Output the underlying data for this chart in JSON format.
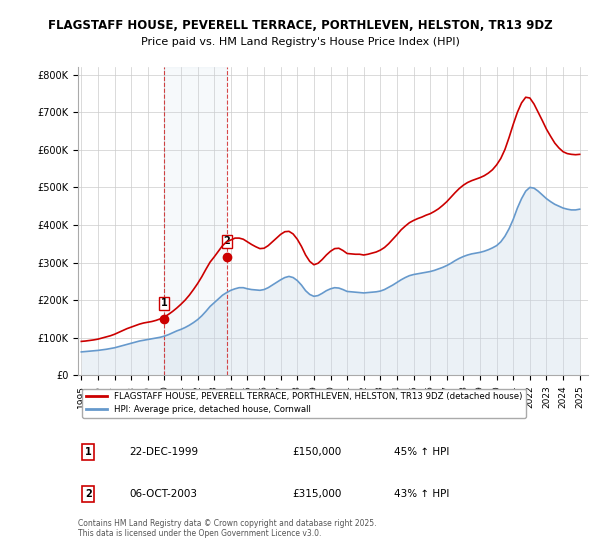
{
  "title_line1": "FLAGSTAFF HOUSE, PEVERELL TERRACE, PORTHLEVEN, HELSTON, TR13 9DZ",
  "title_line2": "Price paid vs. HM Land Registry's House Price Index (HPI)",
  "ylabel": "",
  "ylim": [
    0,
    820000
  ],
  "yticks": [
    0,
    100000,
    200000,
    300000,
    400000,
    500000,
    600000,
    700000,
    800000
  ],
  "ytick_labels": [
    "£0",
    "£100K",
    "£200K",
    "£300K",
    "£400K",
    "£500K",
    "£600K",
    "£700K",
    "£800K"
  ],
  "background_color": "#ffffff",
  "plot_bg_color": "#ffffff",
  "grid_color": "#cccccc",
  "red_line_color": "#cc0000",
  "blue_line_color": "#6699cc",
  "blue_fill_color": "#c8d8e8",
  "transaction1_x": 1999.97,
  "transaction1_y": 150000,
  "transaction1_label": "1",
  "transaction2_x": 2003.77,
  "transaction2_y": 315000,
  "transaction2_label": "2",
  "vline1_x": 1999.97,
  "vline2_x": 2003.77,
  "legend_red_label": "FLAGSTAFF HOUSE, PEVERELL TERRACE, PORTHLEVEN, HELSTON, TR13 9DZ (detached house)",
  "legend_blue_label": "HPI: Average price, detached house, Cornwall",
  "table_row1": [
    "1",
    "22-DEC-1999",
    "£150,000",
    "45% ↑ HPI"
  ],
  "table_row2": [
    "2",
    "06-OCT-2003",
    "£315,000",
    "43% ↑ HPI"
  ],
  "footer_text": "Contains HM Land Registry data © Crown copyright and database right 2025.\nThis data is licensed under the Open Government Licence v3.0.",
  "hpi_years": [
    1995.0,
    1995.25,
    1995.5,
    1995.75,
    1996.0,
    1996.25,
    1996.5,
    1996.75,
    1997.0,
    1997.25,
    1997.5,
    1997.75,
    1998.0,
    1998.25,
    1998.5,
    1998.75,
    1999.0,
    1999.25,
    1999.5,
    1999.75,
    2000.0,
    2000.25,
    2000.5,
    2000.75,
    2001.0,
    2001.25,
    2001.5,
    2001.75,
    2002.0,
    2002.25,
    2002.5,
    2002.75,
    2003.0,
    2003.25,
    2003.5,
    2003.75,
    2004.0,
    2004.25,
    2004.5,
    2004.75,
    2005.0,
    2005.25,
    2005.5,
    2005.75,
    2006.0,
    2006.25,
    2006.5,
    2006.75,
    2007.0,
    2007.25,
    2007.5,
    2007.75,
    2008.0,
    2008.25,
    2008.5,
    2008.75,
    2009.0,
    2009.25,
    2009.5,
    2009.75,
    2010.0,
    2010.25,
    2010.5,
    2010.75,
    2011.0,
    2011.25,
    2011.5,
    2011.75,
    2012.0,
    2012.25,
    2012.5,
    2012.75,
    2013.0,
    2013.25,
    2013.5,
    2013.75,
    2014.0,
    2014.25,
    2014.5,
    2014.75,
    2015.0,
    2015.25,
    2015.5,
    2015.75,
    2016.0,
    2016.25,
    2016.5,
    2016.75,
    2017.0,
    2017.25,
    2017.5,
    2017.75,
    2018.0,
    2018.25,
    2018.5,
    2018.75,
    2019.0,
    2019.25,
    2019.5,
    2019.75,
    2020.0,
    2020.25,
    2020.5,
    2020.75,
    2021.0,
    2021.25,
    2021.5,
    2021.75,
    2022.0,
    2022.25,
    2022.5,
    2022.75,
    2023.0,
    2023.25,
    2023.5,
    2023.75,
    2024.0,
    2024.25,
    2024.5,
    2024.75,
    2025.0
  ],
  "hpi_values": [
    62000,
    63000,
    64000,
    65000,
    66000,
    67500,
    69000,
    71000,
    73000,
    76000,
    79000,
    82000,
    85000,
    88000,
    91000,
    93000,
    95000,
    97000,
    99000,
    101000,
    104000,
    108000,
    113000,
    118000,
    122000,
    127000,
    133000,
    140000,
    148000,
    158000,
    170000,
    183000,
    193000,
    203000,
    213000,
    220000,
    226000,
    230000,
    233000,
    233000,
    230000,
    228000,
    227000,
    226000,
    228000,
    233000,
    240000,
    247000,
    254000,
    260000,
    263000,
    260000,
    252000,
    240000,
    225000,
    215000,
    210000,
    212000,
    218000,
    225000,
    230000,
    233000,
    232000,
    228000,
    223000,
    222000,
    221000,
    220000,
    219000,
    220000,
    221000,
    222000,
    224000,
    228000,
    234000,
    240000,
    247000,
    254000,
    260000,
    265000,
    268000,
    270000,
    272000,
    274000,
    276000,
    279000,
    283000,
    287000,
    292000,
    298000,
    305000,
    311000,
    316000,
    320000,
    323000,
    325000,
    327000,
    330000,
    334000,
    339000,
    345000,
    355000,
    370000,
    390000,
    415000,
    445000,
    470000,
    490000,
    500000,
    498000,
    490000,
    480000,
    470000,
    462000,
    455000,
    450000,
    445000,
    442000,
    440000,
    440000,
    442000
  ],
  "red_years": [
    1995.0,
    1995.25,
    1995.5,
    1995.75,
    1996.0,
    1996.25,
    1996.5,
    1996.75,
    1997.0,
    1997.25,
    1997.5,
    1997.75,
    1998.0,
    1998.25,
    1998.5,
    1998.75,
    1999.0,
    1999.25,
    1999.5,
    1999.75,
    2000.0,
    2000.25,
    2000.5,
    2000.75,
    2001.0,
    2001.25,
    2001.5,
    2001.75,
    2002.0,
    2002.25,
    2002.5,
    2002.75,
    2003.0,
    2003.25,
    2003.5,
    2003.75,
    2004.0,
    2004.25,
    2004.5,
    2004.75,
    2005.0,
    2005.25,
    2005.5,
    2005.75,
    2006.0,
    2006.25,
    2006.5,
    2006.75,
    2007.0,
    2007.25,
    2007.5,
    2007.75,
    2008.0,
    2008.25,
    2008.5,
    2008.75,
    2009.0,
    2009.25,
    2009.5,
    2009.75,
    2010.0,
    2010.25,
    2010.5,
    2010.75,
    2011.0,
    2011.25,
    2011.5,
    2011.75,
    2012.0,
    2012.25,
    2012.5,
    2012.75,
    2013.0,
    2013.25,
    2013.5,
    2013.75,
    2014.0,
    2014.25,
    2014.5,
    2014.75,
    2015.0,
    2015.25,
    2015.5,
    2015.75,
    2016.0,
    2016.25,
    2016.5,
    2016.75,
    2017.0,
    2017.25,
    2017.5,
    2017.75,
    2018.0,
    2018.25,
    2018.5,
    2018.75,
    2019.0,
    2019.25,
    2019.5,
    2019.75,
    2020.0,
    2020.25,
    2020.5,
    2020.75,
    2021.0,
    2021.25,
    2021.5,
    2021.75,
    2022.0,
    2022.25,
    2022.5,
    2022.75,
    2023.0,
    2023.25,
    2023.5,
    2023.75,
    2024.0,
    2024.25,
    2024.5,
    2024.75,
    2025.0
  ],
  "red_values": [
    90000,
    91000,
    92500,
    94000,
    96000,
    99000,
    102000,
    105000,
    109000,
    114000,
    119000,
    124000,
    128000,
    132000,
    136000,
    139000,
    141000,
    143000,
    146000,
    150000,
    155000,
    162000,
    170000,
    179000,
    189000,
    200000,
    213000,
    228000,
    244000,
    262000,
    282000,
    301000,
    315000,
    330000,
    345000,
    355000,
    360000,
    365000,
    365000,
    362000,
    355000,
    348000,
    342000,
    337000,
    338000,
    345000,
    355000,
    365000,
    375000,
    382000,
    383000,
    376000,
    362000,
    343000,
    320000,
    303000,
    294000,
    298000,
    308000,
    320000,
    330000,
    337000,
    338000,
    332000,
    324000,
    323000,
    322000,
    322000,
    320000,
    322000,
    325000,
    328000,
    333000,
    340000,
    350000,
    362000,
    374000,
    387000,
    397000,
    406000,
    412000,
    417000,
    421000,
    426000,
    430000,
    436000,
    443000,
    452000,
    462000,
    474000,
    486000,
    497000,
    506000,
    513000,
    518000,
    522000,
    526000,
    531000,
    538000,
    547000,
    560000,
    577000,
    601000,
    633000,
    668000,
    700000,
    725000,
    740000,
    738000,
    722000,
    700000,
    678000,
    655000,
    636000,
    618000,
    605000,
    595000,
    590000,
    588000,
    587000,
    588000
  ],
  "xlim": [
    1994.8,
    2025.5
  ],
  "xtick_years": [
    1995,
    1996,
    1997,
    1998,
    1999,
    2000,
    2001,
    2002,
    2003,
    2004,
    2005,
    2006,
    2007,
    2008,
    2009,
    2010,
    2011,
    2012,
    2013,
    2014,
    2015,
    2016,
    2017,
    2018,
    2019,
    2020,
    2021,
    2022,
    2023,
    2024,
    2025
  ]
}
